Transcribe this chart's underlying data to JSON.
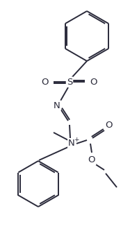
{
  "bg_color": "#ffffff",
  "line_color": "#2a2a3a",
  "line_width": 1.4,
  "figsize": [
    1.87,
    3.33
  ],
  "dpi": 100,
  "xlim": [
    0,
    187
  ],
  "ylim": [
    0,
    333
  ]
}
